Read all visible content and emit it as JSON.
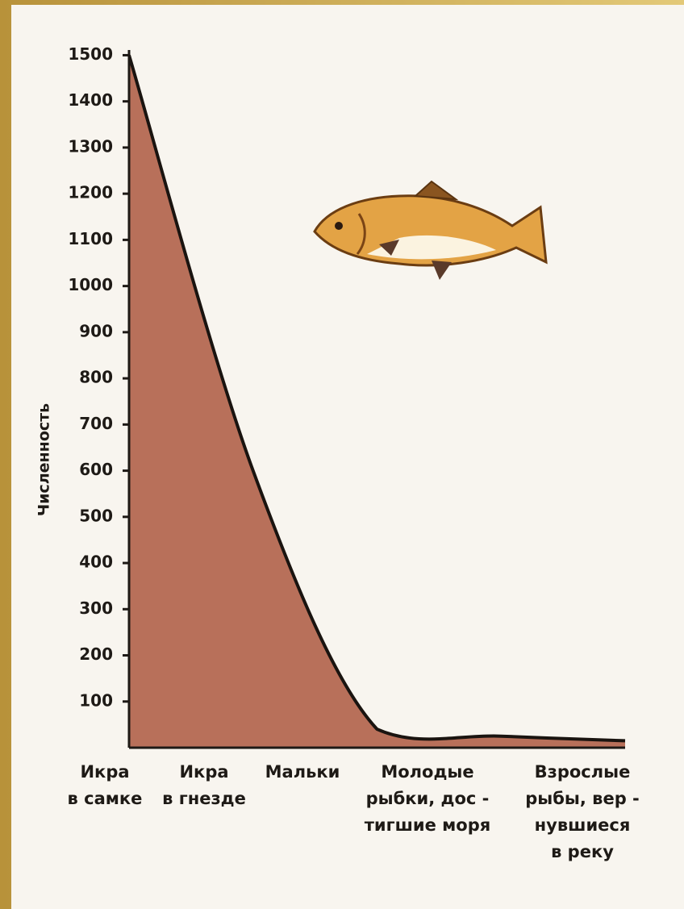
{
  "chart_data": {
    "type": "area",
    "ylabel": "Численность",
    "categories": [
      "Икра\nв самке",
      "Икра\nв гнезде",
      "Мальки",
      "Молодые\nрыбки, дос -\nтигшие моря",
      "Взрослые\nрыбы, вер -\nнувшиеся\nв реку"
    ],
    "values": [
      1500,
      600,
      40,
      25,
      15
    ],
    "color": "#b8705a",
    "line_color": "#1a1410",
    "ylim": [
      0,
      1520
    ],
    "yticks": [
      100,
      200,
      300,
      400,
      500,
      600,
      700,
      800,
      900,
      1000,
      1100,
      1200,
      1300,
      1400,
      1500
    ]
  }
}
